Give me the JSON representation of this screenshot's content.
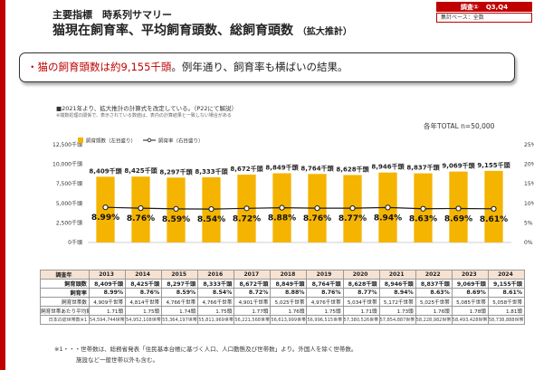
{
  "header": {
    "subtitle": "主要指標　時系列サマリー",
    "title": "猫現在飼育率、平均飼育頭数、総飼育頭数",
    "title_paren": "（拡大推計）"
  },
  "tag": {
    "label": "調査①",
    "period": "Q3,Q4",
    "base": "集計ベース：全数"
  },
  "summary": {
    "dot": "・",
    "highlight": "猫の飼育頭数は約9,155千頭",
    "rest": "。例年通り、飼育率も横ばいの結果。"
  },
  "notes": {
    "line1": "■2021年より、拡大推計の計算式を改定している。（P22にて解説）",
    "line2": "※端数処理の関係で、表示されている数値は、表内の計算結果と一致しない場合がある",
    "total": "各年TOTAL n=50,000"
  },
  "colors": {
    "bar": "#f4b400",
    "line": "#1a1a1a",
    "accent": "#c00000",
    "header_cell": "#f6e2d2"
  },
  "chart_data": {
    "type": "bar",
    "categories": [
      "2013",
      "2014",
      "2015",
      "2016",
      "2017",
      "2018",
      "2019",
      "2020",
      "2021",
      "2022",
      "2023",
      "2024"
    ],
    "series": [
      {
        "name": "飼育頭数（左目盛り）",
        "type": "bar",
        "values": [
          8409,
          8425,
          8297,
          8333,
          8672,
          8849,
          8764,
          8628,
          8946,
          8837,
          9069,
          9155
        ],
        "labels": [
          "8,409千頭",
          "8,425千頭",
          "8,297千頭",
          "8,333千頭",
          "8,672千頭",
          "8,849千頭",
          "8,764千頭",
          "8,628千頭",
          "8,946千頭",
          "8,837千頭",
          "9,069千頭",
          "9,155千頭"
        ]
      },
      {
        "name": "飼育率（右目盛り）",
        "type": "line",
        "values": [
          8.99,
          8.76,
          8.59,
          8.54,
          8.72,
          8.88,
          8.76,
          8.77,
          8.94,
          8.63,
          8.69,
          8.61
        ],
        "labels": [
          "8.99%",
          "8.76%",
          "8.59%",
          "8.54%",
          "8.72%",
          "8.88%",
          "8.76%",
          "8.77%",
          "8.94%",
          "8.63%",
          "8.69%",
          "8.61%"
        ]
      }
    ],
    "left_axis": {
      "ticks": [
        "0千頭",
        "2,500千頭",
        "5,000千頭",
        "7,500千頭",
        "10,000千頭",
        "12,500千頭"
      ],
      "ylim": [
        0,
        12500
      ]
    },
    "right_axis": {
      "ticks": [
        "0%",
        "5%",
        "10%",
        "15%",
        "20%",
        "25%"
      ],
      "ylim": [
        0,
        25
      ]
    },
    "legend": "top-left",
    "grid": false
  },
  "table": {
    "header_label": "調査年",
    "years": [
      "2013",
      "2014",
      "2015",
      "2016",
      "2017",
      "2018",
      "2019",
      "2020",
      "2021",
      "2022",
      "2023",
      "2024"
    ],
    "rows": [
      {
        "label": "飼育頭数",
        "style": "main",
        "values": [
          "8,409千頭",
          "8,425千頭",
          "8,297千頭",
          "8,333千頭",
          "8,672千頭",
          "8,849千頭",
          "8,764千頭",
          "8,628千頭",
          "8,946千頭",
          "8,837千頭",
          "9,069千頭",
          "9,155千頭"
        ]
      },
      {
        "label": "飼育率",
        "style": "main",
        "values": [
          "8.99%",
          "8.76%",
          "8.59%",
          "8.54%",
          "8.72%",
          "8.88%",
          "8.76%",
          "8.77%",
          "8.94%",
          "8.63%",
          "8.69%",
          "8.61%"
        ]
      },
      {
        "label": "飼育世帯数",
        "style": "mid",
        "values": [
          "4,909千世帯",
          "4,814千世帯",
          "4,766千世帯",
          "4,766千世帯",
          "4,901千世帯",
          "5,025千世帯",
          "4,976千世帯",
          "5,034千世帯",
          "5,172千世帯",
          "5,025千世帯",
          "5,085千世帯",
          "5,058千世帯"
        ]
      },
      {
        "label": "飼育世帯あたり平均飼育頭数",
        "style": "mid",
        "values": [
          "1.71頭",
          "1.75頭",
          "1.74頭",
          "1.75頭",
          "1.77頭",
          "1.76頭",
          "1.75頭",
          "1.71頭",
          "1.73頭",
          "1.76頭",
          "1.78頭",
          "1.81頭"
        ]
      },
      {
        "label": "日本の総世帯数※1",
        "style": "small",
        "values": [
          "54,594,744世帯",
          "54,952,108世帯",
          "55,364,197世帯",
          "55,811,969世帯",
          "56,221,568世帯",
          "56,613,999世帯",
          "56,996,515世帯",
          "57,380,526世帯",
          "57,854,887世帯",
          "58,228,982世帯",
          "58,493,428世帯",
          "58,738,888世帯"
        ]
      }
    ]
  },
  "footnote": {
    "line1": "※1・・・世帯数は、総務省発表「住民基本台帳に基づく人口、人口動態及び世帯数」より。外国人を除く世帯数。",
    "line2": "施設など一般世帯以外も含む。"
  }
}
